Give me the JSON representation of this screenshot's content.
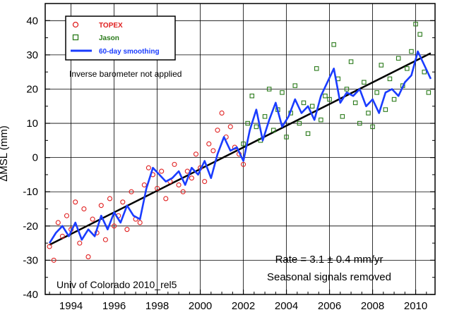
{
  "chart_data": {
    "type": "scatter",
    "ylabel": "ΔMSL   (mm)",
    "xlim": [
      1992.8,
      2010.9
    ],
    "ylim": [
      -40,
      45
    ],
    "xticks": [
      1994,
      1996,
      1998,
      2000,
      2002,
      2004,
      2006,
      2008,
      2010
    ],
    "yticks": [
      -40,
      -30,
      -20,
      -10,
      0,
      10,
      20,
      30,
      40
    ],
    "grid": true,
    "legend_position": "top-left",
    "series": [
      {
        "name": "TOPEX",
        "marker": "circle",
        "color": "#e02020",
        "x": [
          1993.0,
          1993.2,
          1993.4,
          1993.6,
          1993.8,
          1994.0,
          1994.2,
          1994.4,
          1994.6,
          1994.8,
          1995.0,
          1995.2,
          1995.4,
          1995.6,
          1995.8,
          1996.0,
          1996.2,
          1996.4,
          1996.6,
          1996.8,
          1997.0,
          1997.2,
          1997.4,
          1997.6,
          1997.8,
          1998.0,
          1998.2,
          1998.4,
          1998.6,
          1998.8,
          1999.0,
          1999.2,
          1999.4,
          1999.6,
          1999.8,
          2000.0,
          2000.2,
          2000.4,
          2000.6,
          2000.8,
          2001.0,
          2001.2,
          2001.4,
          2001.6,
          2001.8,
          2002.0
        ],
        "y": [
          -26,
          -30,
          -19,
          -23,
          -17,
          -21,
          -13,
          -25,
          -15,
          -29,
          -18,
          -22,
          -14,
          -24,
          -12,
          -20,
          -17,
          -13,
          -21,
          -10,
          -18,
          -19,
          -8,
          -3,
          -5,
          -9,
          -4,
          -12,
          -7,
          -2,
          -8,
          -10,
          -4,
          -6,
          1,
          -3,
          -7,
          4,
          2,
          8,
          13,
          6,
          9,
          3,
          1,
          -2
        ]
      },
      {
        "name": "Jason",
        "marker": "square",
        "color": "#2a7a1a",
        "x": [
          2002.0,
          2002.2,
          2002.4,
          2002.6,
          2002.8,
          2003.0,
          2003.2,
          2003.4,
          2003.6,
          2003.8,
          2004.0,
          2004.2,
          2004.4,
          2004.6,
          2004.8,
          2005.0,
          2005.2,
          2005.4,
          2005.6,
          2005.8,
          2006.0,
          2006.2,
          2006.4,
          2006.6,
          2006.8,
          2007.0,
          2007.2,
          2007.4,
          2007.6,
          2007.8,
          2008.0,
          2008.2,
          2008.4,
          2008.6,
          2008.8,
          2009.0,
          2009.2,
          2009.4,
          2009.6,
          2009.8,
          2010.0,
          2010.2,
          2010.4,
          2010.6
        ],
        "y": [
          4,
          10,
          18,
          9,
          5,
          12,
          20,
          8,
          14,
          19,
          6,
          13,
          21,
          10,
          16,
          7,
          15,
          26,
          11,
          18,
          17,
          33,
          23,
          12,
          20,
          28,
          16,
          10,
          22,
          13,
          9,
          19,
          27,
          14,
          23,
          17,
          29,
          21,
          26,
          31,
          39,
          36,
          25,
          19
        ]
      },
      {
        "name": "60-day smoothing",
        "marker": "line",
        "color": "#1a3cff",
        "x": [
          1993.0,
          1993.3,
          1993.6,
          1993.9,
          1994.2,
          1994.5,
          1994.8,
          1995.1,
          1995.4,
          1995.7,
          1996.0,
          1996.3,
          1996.6,
          1996.9,
          1997.2,
          1997.5,
          1997.8,
          1998.1,
          1998.4,
          1998.7,
          1999.0,
          1999.3,
          1999.6,
          1999.9,
          2000.2,
          2000.5,
          2000.8,
          2001.1,
          2001.4,
          2001.7,
          2002.0,
          2002.3,
          2002.6,
          2002.9,
          2003.2,
          2003.5,
          2003.8,
          2004.1,
          2004.4,
          2004.7,
          2005.0,
          2005.3,
          2005.6,
          2005.9,
          2006.2,
          2006.5,
          2006.8,
          2007.1,
          2007.4,
          2007.7,
          2008.0,
          2008.3,
          2008.6,
          2008.9,
          2009.2,
          2009.5,
          2009.8,
          2010.1,
          2010.4,
          2010.7
        ],
        "y": [
          -25,
          -22,
          -20,
          -23,
          -19,
          -24,
          -21,
          -23,
          -17,
          -21,
          -16,
          -19,
          -14,
          -17,
          -18,
          -9,
          -3,
          -5,
          -7,
          -6,
          -4,
          -8,
          -3,
          -5,
          -1,
          -6,
          1,
          6,
          2,
          3,
          -1,
          8,
          14,
          5,
          11,
          16,
          9,
          12,
          17,
          13,
          15,
          11,
          18,
          22,
          26,
          16,
          19,
          18,
          20,
          15,
          17,
          13,
          19,
          20,
          18,
          22,
          24,
          31,
          27,
          23
        ]
      }
    ],
    "trend": {
      "name": "linear trend",
      "color": "#000000",
      "x": [
        1993.0,
        2010.7
      ],
      "y": [
        -25.5,
        30.5
      ]
    },
    "legend": [
      {
        "label": "TOPEX",
        "color": "#e02020",
        "marker": "circle"
      },
      {
        "label": "Jason",
        "color": "#2a7a1a",
        "marker": "square"
      },
      {
        "label": "60-day smoothing",
        "color": "#1a3cff",
        "marker": "line"
      }
    ],
    "annotations": {
      "ib_note": "Inverse barometer not applied",
      "rate": "Rate = 3.1 ± 0.4 mm/yr",
      "seasonal": "Seasonal signals removed",
      "credit": "Univ of Colorado 2010_rel5"
    }
  }
}
